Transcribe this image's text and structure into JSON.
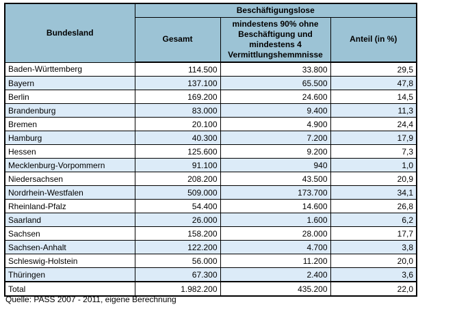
{
  "source_note": "Quelle: PASS 2007 - 2011, eigene Berechnung",
  "colors": {
    "header_bg": "#9cc3d5",
    "alt_row_bg": "#dcebf8",
    "border": "#000000",
    "text": "#000000"
  },
  "chart_data": {
    "type": "table",
    "column_group": "Beschäftigungslose",
    "column_group_spans": [
      "Gesamt",
      "mindestens 90% ohne Beschäftigung und mindestens 4 Vermittlungshemmnisse",
      "Anteil (in %)"
    ],
    "columns": [
      "Bundesland",
      "Gesamt",
      "mindestens 90% ohne Beschäftigung und mindestens 4 Vermittlungshemmnisse",
      "Anteil (in %)"
    ],
    "rows": [
      [
        "Baden-Württemberg",
        "114.500",
        "33.800",
        "29,5"
      ],
      [
        "Bayern",
        "137.100",
        "65.500",
        "47,8"
      ],
      [
        "Berlin",
        "169.200",
        "24.600",
        "14,5"
      ],
      [
        "Brandenburg",
        "83.000",
        "9.400",
        "11,3"
      ],
      [
        "Bremen",
        "20.100",
        "4.900",
        "24,4"
      ],
      [
        "Hamburg",
        "40.300",
        "7.200",
        "17,9"
      ],
      [
        "Hessen",
        "125.600",
        "9.200",
        "7,3"
      ],
      [
        "Mecklenburg-Vorpommern",
        "91.100",
        "940",
        "1,0"
      ],
      [
        "Niedersachsen",
        "208.200",
        "43.500",
        "20,9"
      ],
      [
        "Nordrhein-Westfalen",
        "509.000",
        "173.700",
        "34,1"
      ],
      [
        "Rheinland-Pfalz",
        "54.400",
        "14.600",
        "26,8"
      ],
      [
        "Saarland",
        "26.000",
        "1.600",
        "6,2"
      ],
      [
        "Sachsen",
        "158.200",
        "28.000",
        "17,7"
      ],
      [
        "Sachsen-Anhalt",
        "122.200",
        "4.700",
        "3,8"
      ],
      [
        "Schleswig-Holstein",
        "56.000",
        "11.200",
        "20,0"
      ],
      [
        "Thüringen",
        "67.300",
        "2.400",
        "3,6"
      ]
    ],
    "total_row": [
      "Total",
      "1.982.200",
      "435.200",
      "22,0"
    ]
  }
}
